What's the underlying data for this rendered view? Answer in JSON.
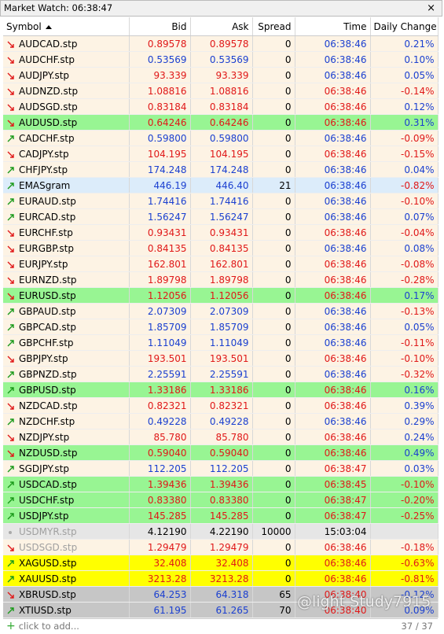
{
  "window": {
    "title": "Market Watch: 06:38:47",
    "close": "×"
  },
  "table": {
    "columns": [
      {
        "label": "Symbol",
        "sorted": "asc"
      },
      {
        "label": "Bid"
      },
      {
        "label": "Ask"
      },
      {
        "label": "Spread"
      },
      {
        "label": "Time"
      },
      {
        "label": "Daily Change"
      }
    ],
    "rows": [
      {
        "symbol": "AUDCAD.stp",
        "bid": "0.89578",
        "ask": "0.89578",
        "spread": "0",
        "time": "06:38:46",
        "change": "0.21%",
        "style": {
          "arrow": "down",
          "bg": "#fdf3e4",
          "price": "#e01818",
          "time": "#1a3fd0",
          "change": "#1a3fd0"
        }
      },
      {
        "symbol": "AUDCHF.stp",
        "bid": "0.53569",
        "ask": "0.53569",
        "spread": "0",
        "time": "06:38:46",
        "change": "0.10%",
        "style": {
          "arrow": "down",
          "bg": "#fdf3e4",
          "price": "#1a3fd0",
          "time": "#1a3fd0",
          "change": "#1a3fd0"
        }
      },
      {
        "symbol": "AUDJPY.stp",
        "bid": "93.339",
        "ask": "93.339",
        "spread": "0",
        "time": "06:38:46",
        "change": "0.05%",
        "style": {
          "arrow": "down",
          "bg": "#fdf3e4",
          "price": "#e01818",
          "time": "#1a3fd0",
          "change": "#1a3fd0"
        }
      },
      {
        "symbol": "AUDNZD.stp",
        "bid": "1.08816",
        "ask": "1.08816",
        "spread": "0",
        "time": "06:38:46",
        "change": "-0.14%",
        "style": {
          "arrow": "down",
          "bg": "#fdf3e4",
          "price": "#e01818",
          "time": "#e01818",
          "change": "#e01818"
        }
      },
      {
        "symbol": "AUDSGD.stp",
        "bid": "0.83184",
        "ask": "0.83184",
        "spread": "0",
        "time": "06:38:46",
        "change": "0.12%",
        "style": {
          "arrow": "down",
          "bg": "#fdf3e4",
          "price": "#e01818",
          "time": "#e01818",
          "change": "#1a3fd0"
        }
      },
      {
        "symbol": "AUDUSD.stp",
        "bid": "0.64246",
        "ask": "0.64246",
        "spread": "0",
        "time": "06:38:46",
        "change": "0.31%",
        "style": {
          "arrow": "down",
          "bg": "#98f593",
          "price": "#e01818",
          "time": "#e01818",
          "change": "#1a3fd0"
        }
      },
      {
        "symbol": "CADCHF.stp",
        "bid": "0.59800",
        "ask": "0.59800",
        "spread": "0",
        "time": "06:38:46",
        "change": "-0.09%",
        "style": {
          "arrow": "up",
          "bg": "#fdf3e4",
          "price": "#1a3fd0",
          "time": "#1a3fd0",
          "change": "#e01818"
        }
      },
      {
        "symbol": "CADJPY.stp",
        "bid": "104.195",
        "ask": "104.195",
        "spread": "0",
        "time": "06:38:46",
        "change": "-0.15%",
        "style": {
          "arrow": "down",
          "bg": "#fdf3e4",
          "price": "#e01818",
          "time": "#e01818",
          "change": "#e01818"
        }
      },
      {
        "symbol": "CHFJPY.stp",
        "bid": "174.248",
        "ask": "174.248",
        "spread": "0",
        "time": "06:38:46",
        "change": "0.04%",
        "style": {
          "arrow": "up",
          "bg": "#fdf3e4",
          "price": "#1a3fd0",
          "time": "#1a3fd0",
          "change": "#1a3fd0"
        }
      },
      {
        "symbol": "EMASgram",
        "bid": "446.19",
        "ask": "446.40",
        "spread": "21",
        "time": "06:38:46",
        "change": "-0.82%",
        "style": {
          "arrow": "up",
          "bg": "#dcecfa",
          "price": "#1a3fd0",
          "time": "#1a3fd0",
          "change": "#e01818"
        }
      },
      {
        "symbol": "EURAUD.stp",
        "bid": "1.74416",
        "ask": "1.74416",
        "spread": "0",
        "time": "06:38:46",
        "change": "-0.10%",
        "style": {
          "arrow": "up",
          "bg": "#fdf3e4",
          "price": "#1a3fd0",
          "time": "#1a3fd0",
          "change": "#e01818"
        }
      },
      {
        "symbol": "EURCAD.stp",
        "bid": "1.56247",
        "ask": "1.56247",
        "spread": "0",
        "time": "06:38:46",
        "change": "0.07%",
        "style": {
          "arrow": "up",
          "bg": "#fdf3e4",
          "price": "#1a3fd0",
          "time": "#1a3fd0",
          "change": "#1a3fd0"
        }
      },
      {
        "symbol": "EURCHF.stp",
        "bid": "0.93431",
        "ask": "0.93431",
        "spread": "0",
        "time": "06:38:46",
        "change": "-0.04%",
        "style": {
          "arrow": "down",
          "bg": "#fdf3e4",
          "price": "#e01818",
          "time": "#e01818",
          "change": "#e01818"
        }
      },
      {
        "symbol": "EURGBP.stp",
        "bid": "0.84135",
        "ask": "0.84135",
        "spread": "0",
        "time": "06:38:46",
        "change": "0.08%",
        "style": {
          "arrow": "down",
          "bg": "#fdf3e4",
          "price": "#e01818",
          "time": "#1a3fd0",
          "change": "#1a3fd0"
        }
      },
      {
        "symbol": "EURJPY.stp",
        "bid": "162.801",
        "ask": "162.801",
        "spread": "0",
        "time": "06:38:46",
        "change": "-0.08%",
        "style": {
          "arrow": "down",
          "bg": "#fdf3e4",
          "price": "#e01818",
          "time": "#e01818",
          "change": "#e01818"
        }
      },
      {
        "symbol": "EURNZD.stp",
        "bid": "1.89798",
        "ask": "1.89798",
        "spread": "0",
        "time": "06:38:46",
        "change": "-0.28%",
        "style": {
          "arrow": "down",
          "bg": "#fdf3e4",
          "price": "#e01818",
          "time": "#e01818",
          "change": "#e01818"
        }
      },
      {
        "symbol": "EURUSD.stp",
        "bid": "1.12056",
        "ask": "1.12056",
        "spread": "0",
        "time": "06:38:46",
        "change": "0.17%",
        "style": {
          "arrow": "down",
          "bg": "#98f593",
          "price": "#e01818",
          "time": "#e01818",
          "change": "#1a3fd0"
        }
      },
      {
        "symbol": "GBPAUD.stp",
        "bid": "2.07309",
        "ask": "2.07309",
        "spread": "0",
        "time": "06:38:46",
        "change": "-0.13%",
        "style": {
          "arrow": "up",
          "bg": "#fdf3e4",
          "price": "#1a3fd0",
          "time": "#1a3fd0",
          "change": "#e01818"
        }
      },
      {
        "symbol": "GBPCAD.stp",
        "bid": "1.85709",
        "ask": "1.85709",
        "spread": "0",
        "time": "06:38:46",
        "change": "0.05%",
        "style": {
          "arrow": "up",
          "bg": "#fdf3e4",
          "price": "#1a3fd0",
          "time": "#1a3fd0",
          "change": "#1a3fd0"
        }
      },
      {
        "symbol": "GBPCHF.stp",
        "bid": "1.11049",
        "ask": "1.11049",
        "spread": "0",
        "time": "06:38:46",
        "change": "-0.11%",
        "style": {
          "arrow": "up",
          "bg": "#fdf3e4",
          "price": "#1a3fd0",
          "time": "#1a3fd0",
          "change": "#e01818"
        }
      },
      {
        "symbol": "GBPJPY.stp",
        "bid": "193.501",
        "ask": "193.501",
        "spread": "0",
        "time": "06:38:46",
        "change": "-0.10%",
        "style": {
          "arrow": "down",
          "bg": "#fdf3e4",
          "price": "#e01818",
          "time": "#e01818",
          "change": "#e01818"
        }
      },
      {
        "symbol": "GBPNZD.stp",
        "bid": "2.25591",
        "ask": "2.25591",
        "spread": "0",
        "time": "06:38:46",
        "change": "-0.32%",
        "style": {
          "arrow": "up",
          "bg": "#fdf3e4",
          "price": "#1a3fd0",
          "time": "#1a3fd0",
          "change": "#e01818"
        }
      },
      {
        "symbol": "GBPUSD.stp",
        "bid": "1.33186",
        "ask": "1.33186",
        "spread": "0",
        "time": "06:38:46",
        "change": "0.16%",
        "style": {
          "arrow": "up",
          "bg": "#98f593",
          "price": "#e01818",
          "time": "#e01818",
          "change": "#1a3fd0"
        }
      },
      {
        "symbol": "NZDCAD.stp",
        "bid": "0.82321",
        "ask": "0.82321",
        "spread": "0",
        "time": "06:38:46",
        "change": "0.39%",
        "style": {
          "arrow": "down",
          "bg": "#fdf3e4",
          "price": "#e01818",
          "time": "#e01818",
          "change": "#1a3fd0"
        }
      },
      {
        "symbol": "NZDCHF.stp",
        "bid": "0.49228",
        "ask": "0.49228",
        "spread": "0",
        "time": "06:38:46",
        "change": "0.29%",
        "style": {
          "arrow": "up",
          "bg": "#fdf3e4",
          "price": "#1a3fd0",
          "time": "#1a3fd0",
          "change": "#1a3fd0"
        }
      },
      {
        "symbol": "NZDJPY.stp",
        "bid": "85.780",
        "ask": "85.780",
        "spread": "0",
        "time": "06:38:46",
        "change": "0.24%",
        "style": {
          "arrow": "down",
          "bg": "#fdf3e4",
          "price": "#e01818",
          "time": "#e01818",
          "change": "#1a3fd0"
        }
      },
      {
        "symbol": "NZDUSD.stp",
        "bid": "0.59040",
        "ask": "0.59040",
        "spread": "0",
        "time": "06:38:46",
        "change": "0.49%",
        "style": {
          "arrow": "down",
          "bg": "#98f593",
          "price": "#e01818",
          "time": "#e01818",
          "change": "#1a3fd0"
        }
      },
      {
        "symbol": "SGDJPY.stp",
        "bid": "112.205",
        "ask": "112.205",
        "spread": "0",
        "time": "06:38:47",
        "change": "0.03%",
        "style": {
          "arrow": "up",
          "bg": "#fdf3e4",
          "price": "#1a3fd0",
          "time": "#e01818",
          "change": "#1a3fd0"
        }
      },
      {
        "symbol": "USDCAD.stp",
        "bid": "1.39436",
        "ask": "1.39436",
        "spread": "0",
        "time": "06:38:45",
        "change": "-0.10%",
        "style": {
          "arrow": "up",
          "bg": "#98f593",
          "price": "#e01818",
          "time": "#e01818",
          "change": "#e01818"
        }
      },
      {
        "symbol": "USDCHF.stp",
        "bid": "0.83380",
        "ask": "0.83380",
        "spread": "0",
        "time": "06:38:47",
        "change": "-0.20%",
        "style": {
          "arrow": "up",
          "bg": "#98f593",
          "price": "#e01818",
          "time": "#e01818",
          "change": "#e01818"
        }
      },
      {
        "symbol": "USDJPY.stp",
        "bid": "145.285",
        "ask": "145.285",
        "spread": "0",
        "time": "06:38:47",
        "change": "-0.25%",
        "style": {
          "arrow": "up",
          "bg": "#98f593",
          "price": "#e01818",
          "time": "#e01818",
          "change": "#e01818"
        }
      },
      {
        "symbol": "USDMYR.stp",
        "bid": "4.12190",
        "ask": "4.22190",
        "spread": "10000",
        "time": "15:03:04",
        "change": null,
        "style": {
          "arrow": "dot",
          "bg": "#e6e6e6",
          "symbol": "#a0a0a0",
          "price": "#000000",
          "time": "#000000",
          "change": "#000000"
        }
      },
      {
        "symbol": "USDSGD.stp",
        "bid": "1.29479",
        "ask": "1.29479",
        "spread": "0",
        "time": "06:38:46",
        "change": "-0.18%",
        "style": {
          "arrow": "down",
          "bg": "#fdf3e4",
          "symbol": "#a0a0a0",
          "price": "#e01818",
          "time": "#e01818",
          "change": "#e01818"
        }
      },
      {
        "symbol": "XAGUSD.stp",
        "bid": "32.408",
        "ask": "32.408",
        "spread": "0",
        "time": "06:38:46",
        "change": "-0.63%",
        "style": {
          "arrow": "up",
          "bg": "#ffff00",
          "price": "#e01818",
          "time": "#e01818",
          "change": "#e01818"
        }
      },
      {
        "symbol": "XAUUSD.stp",
        "bid": "3213.28",
        "ask": "3213.28",
        "spread": "0",
        "time": "06:38:46",
        "change": "-0.81%",
        "style": {
          "arrow": "up",
          "bg": "#ffff00",
          "price": "#e01818",
          "time": "#e01818",
          "change": "#e01818"
        }
      },
      {
        "symbol": "XBRUSD.stp",
        "bid": "64.253",
        "ask": "64.318",
        "spread": "65",
        "time": "06:38:40",
        "change": "-0.12%",
        "style": {
          "arrow": "down",
          "bg": "#c6c6c6",
          "price": "#1a3fd0",
          "time": "#e01818",
          "change": "#1a3fd0"
        }
      },
      {
        "symbol": "XTIUSD.stp",
        "bid": "61.195",
        "ask": "61.265",
        "spread": "70",
        "time": "06:38:40",
        "change": "0.09%",
        "style": {
          "arrow": "up",
          "bg": "#c6c6c6",
          "price": "#1a3fd0",
          "time": "#e01818",
          "change": "#1a3fd0"
        }
      }
    ]
  },
  "footer": {
    "add": "click to add...",
    "count": "37 / 37"
  },
  "watermark": "@light Study7915"
}
